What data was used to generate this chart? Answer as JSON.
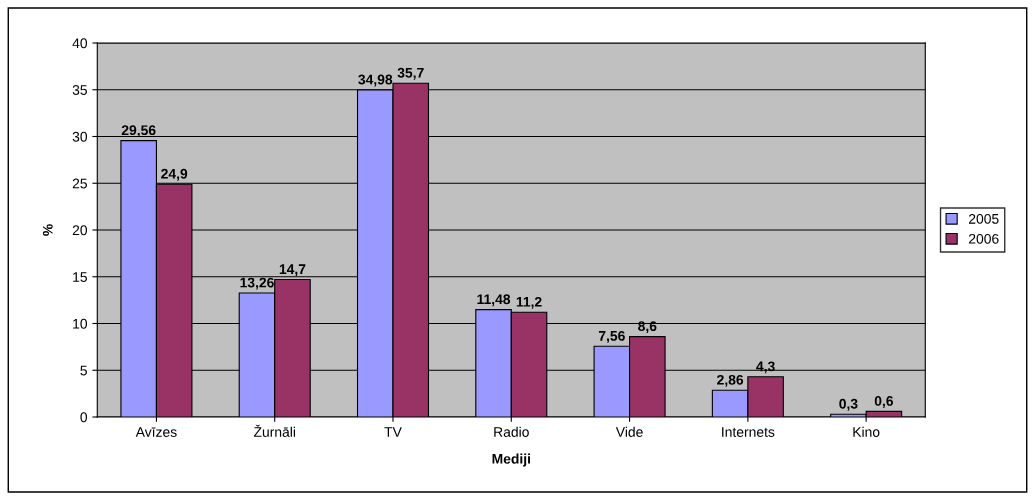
{
  "chart_data": {
    "type": "bar",
    "xlabel": "Mediji",
    "ylabel": "%",
    "categories": [
      "Avīzes",
      "Žurnāli",
      "TV",
      "Radio",
      "Vide",
      "Internets",
      "Kino"
    ],
    "series": [
      {
        "name": "2005",
        "color": "#9999ff",
        "values": [
          29.56,
          13.26,
          34.98,
          11.48,
          7.56,
          2.86,
          0.3
        ],
        "value_labels": [
          "29,56",
          "13,26",
          "34,98",
          "11,48",
          "7,56",
          "2,86",
          "0,3"
        ]
      },
      {
        "name": "2006",
        "color": "#993366",
        "values": [
          24.9,
          14.7,
          35.7,
          11.2,
          8.6,
          4.3,
          0.6
        ],
        "value_labels": [
          "24,9",
          "14,7",
          "35,7",
          "11,2",
          "8,6",
          "4,3",
          "0,6"
        ]
      }
    ],
    "ylim": [
      0,
      40
    ],
    "yticks": [
      0,
      5,
      10,
      15,
      20,
      25,
      30,
      35,
      40
    ],
    "grid": "y",
    "legend": "right"
  }
}
